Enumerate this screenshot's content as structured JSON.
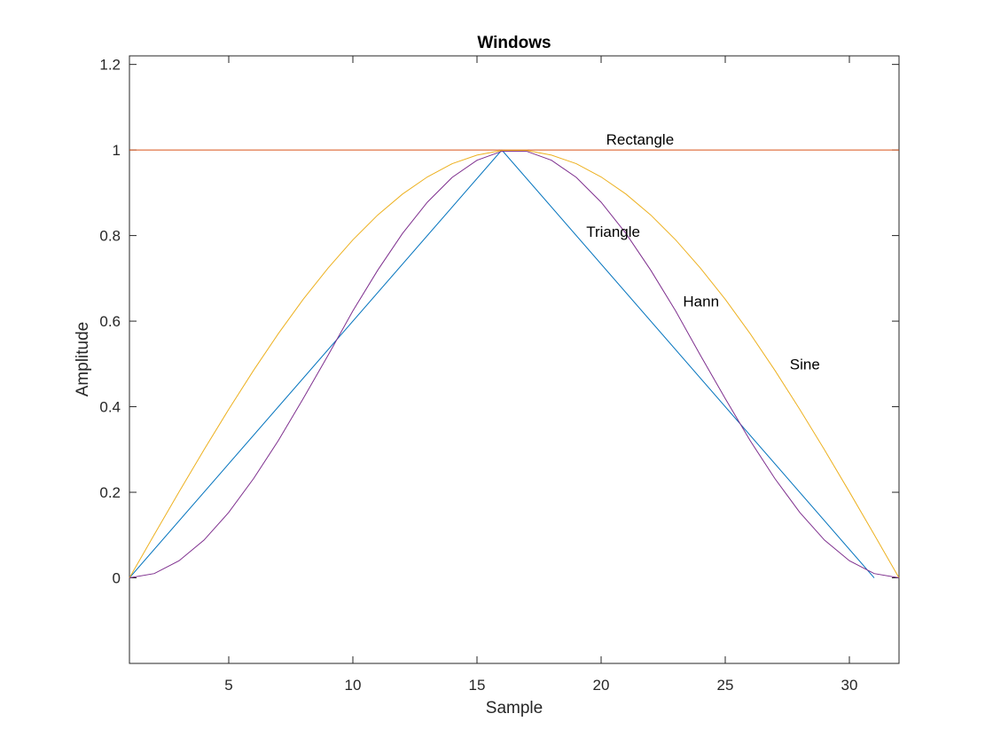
{
  "chart_data": {
    "type": "line",
    "title": "Windows",
    "xlabel": "Sample",
    "ylabel": "Amplitude",
    "xlim": [
      1,
      32
    ],
    "ylim": [
      -0.2,
      1.22
    ],
    "xticks": [
      5,
      10,
      15,
      20,
      25,
      30
    ],
    "yticks": [
      0,
      0.2,
      0.4,
      0.6,
      0.8,
      1,
      1.2
    ],
    "ytick_labels": [
      "0",
      "0.2",
      "0.4",
      "0.6",
      "0.8",
      "1",
      "1.2"
    ],
    "grid": false,
    "box": true,
    "series": [
      {
        "name": "Triangle",
        "color": "#0072bd",
        "x": [
          1,
          16,
          31
        ],
        "y": [
          0,
          1,
          0
        ]
      },
      {
        "name": "Rectangle",
        "color": "#d95319",
        "x": [
          1,
          32
        ],
        "y": [
          1,
          1
        ]
      },
      {
        "name": "Sine",
        "color": "#edb120",
        "x": [
          1,
          2,
          3,
          4,
          5,
          6,
          7,
          8,
          9,
          10,
          11,
          12,
          13,
          14,
          15,
          16,
          17,
          18,
          19,
          20,
          21,
          22,
          23,
          24,
          25,
          26,
          27,
          28,
          29,
          30,
          31,
          32
        ],
        "y": [
          0.0,
          0.101,
          0.201,
          0.299,
          0.394,
          0.485,
          0.571,
          0.651,
          0.724,
          0.79,
          0.848,
          0.897,
          0.937,
          0.968,
          0.988,
          0.999,
          0.999,
          0.988,
          0.968,
          0.937,
          0.897,
          0.848,
          0.79,
          0.724,
          0.651,
          0.571,
          0.485,
          0.394,
          0.299,
          0.201,
          0.101,
          0.0
        ]
      },
      {
        "name": "Hann",
        "color": "#7e2f8e",
        "x": [
          1,
          2,
          3,
          4,
          5,
          6,
          7,
          8,
          9,
          10,
          11,
          12,
          13,
          14,
          15,
          16,
          17,
          18,
          19,
          20,
          21,
          22,
          23,
          24,
          25,
          26,
          27,
          28,
          29,
          30,
          31,
          32
        ],
        "y": [
          0.0,
          0.01,
          0.04,
          0.088,
          0.153,
          0.232,
          0.321,
          0.419,
          0.52,
          0.624,
          0.719,
          0.805,
          0.878,
          0.936,
          0.976,
          0.997,
          0.997,
          0.976,
          0.936,
          0.878,
          0.805,
          0.719,
          0.624,
          0.52,
          0.419,
          0.321,
          0.232,
          0.153,
          0.088,
          0.04,
          0.01,
          0.0
        ]
      }
    ],
    "annotations": [
      {
        "text": "Rectangle",
        "x": 20.2,
        "y": 1.025
      },
      {
        "text": "Triangle",
        "x": 19.4,
        "y": 0.81
      },
      {
        "text": "Hann",
        "x": 23.3,
        "y": 0.647
      },
      {
        "text": "Sine",
        "x": 27.6,
        "y": 0.5
      }
    ]
  }
}
